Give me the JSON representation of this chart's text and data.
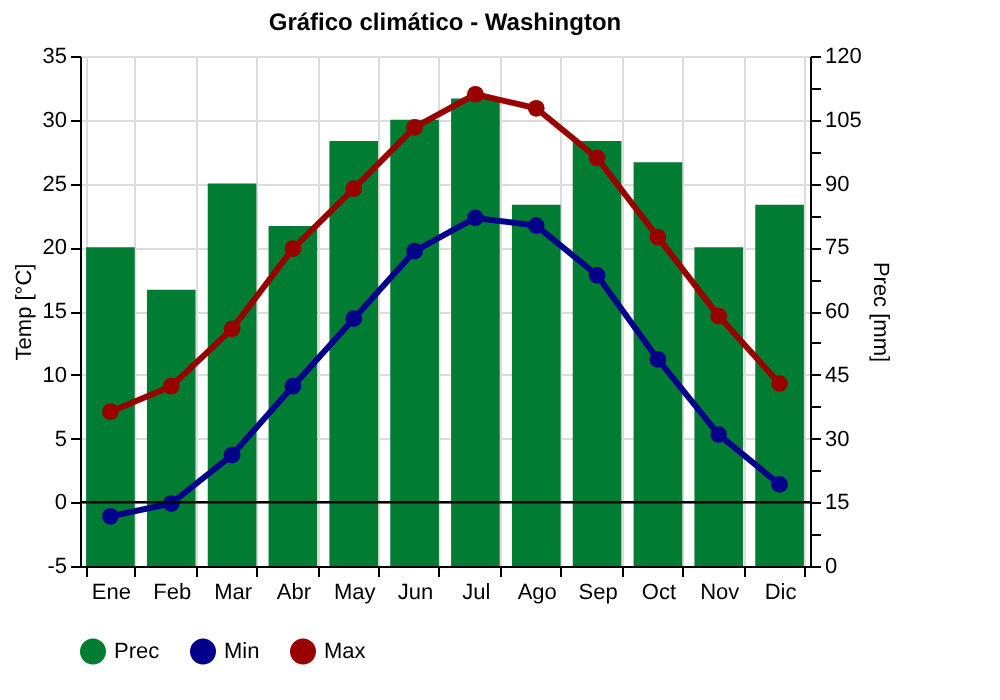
{
  "chart_data": {
    "type": "bar",
    "title": "Gráfico climático - Washington",
    "ylabel": "Temp [°C]",
    "y2label": "Prec [mm]",
    "categories": [
      "Ene",
      "Feb",
      "Mar",
      "Abr",
      "May",
      "Jun",
      "Jul",
      "Ago",
      "Sep",
      "Oct",
      "Nov",
      "Dic"
    ],
    "series": [
      {
        "name": "Prec",
        "axis": "y2",
        "color": "#007d32",
        "values": [
          75,
          65,
          90,
          80,
          100,
          105,
          110,
          85,
          100,
          95,
          75,
          85
        ]
      },
      {
        "name": "Min",
        "type": "line",
        "color": "#00008b",
        "values": [
          -1.1,
          -0.1,
          3.7,
          9.1,
          14.4,
          19.7,
          22.3,
          21.7,
          17.8,
          11.2,
          5.3,
          1.4
        ]
      },
      {
        "name": "Max",
        "type": "line",
        "color": "#990000",
        "values": [
          7.1,
          9.1,
          13.6,
          19.9,
          24.6,
          29.4,
          32.0,
          30.9,
          27.0,
          20.8,
          14.6,
          9.3
        ]
      }
    ],
    "ylim": [
      -5,
      35
    ],
    "yticks": [
      -5,
      0,
      5,
      10,
      15,
      20,
      25,
      30,
      35
    ],
    "y2lim": [
      0,
      120
    ],
    "y2ticks": [
      0,
      {
        "value": 7.5,
        "label": null
      },
      15,
      {
        "value": 22.5,
        "label": null
      },
      30,
      {
        "value": 37.5,
        "label": null
      },
      45,
      {
        "value": 52.5,
        "label": null
      },
      60,
      {
        "value": 67.5,
        "label": null
      },
      75,
      {
        "value": 82.5,
        "label": null
      },
      90,
      {
        "value": 97.5,
        "label": null
      },
      105,
      {
        "value": 112.5,
        "label": null
      },
      120
    ],
    "ref_lines": [
      {
        "axis": "y",
        "value": 0,
        "color": "#000000"
      }
    ],
    "grid": true,
    "legend": "bottom",
    "marker": "circle",
    "line_style": "solid"
  }
}
